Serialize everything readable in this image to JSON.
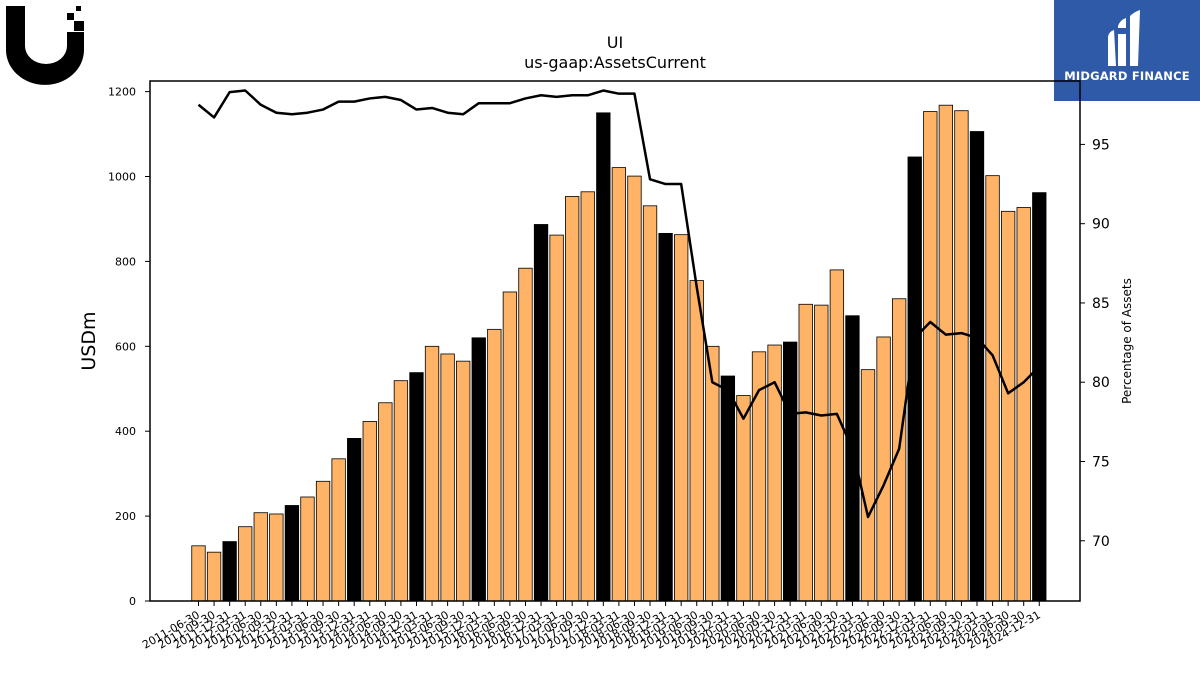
{
  "logo": {
    "icon": "ubiquiti-u-icon"
  },
  "brand": {
    "name": "MIDGARD FINANCE",
    "icon": "midgard-finance-logo-icon",
    "background": "#2f5aa8"
  },
  "chart_data": {
    "type": "bar",
    "title": "UI",
    "subtitle": "us-gaap:AssetsCurrent",
    "ylabel": "USDm",
    "y2label": "Percentage of Assets",
    "ylim": [
      0,
      1225
    ],
    "y2lim": [
      66.2,
      99.0
    ],
    "yticks": [
      0,
      200,
      400,
      600,
      800,
      1000,
      1200
    ],
    "y2ticks": [
      70,
      75,
      80,
      85,
      90,
      95
    ],
    "colors": {
      "bar_default": "#ffb366",
      "bar_highlight": "#000000",
      "line": "#000000"
    },
    "categories": [
      "2011-06-30",
      "2011-09-30",
      "2011-12-31",
      "2012-03-31",
      "2012-06-30",
      "2012-09-30",
      "2012-12-31",
      "2013-03-31",
      "2013-06-30",
      "2013-09-30",
      "2013-12-31",
      "2014-03-31",
      "2014-06-30",
      "2014-09-30",
      "2014-12-31",
      "2015-03-31",
      "2015-06-30",
      "2015-09-30",
      "2015-12-31",
      "2016-03-31",
      "2016-06-30",
      "2016-09-30",
      "2016-12-31",
      "2017-03-31",
      "2017-06-30",
      "2017-09-30",
      "2017-12-31",
      "2018-03-31",
      "2018-06-30",
      "2018-09-30",
      "2018-12-31",
      "2019-03-31",
      "2019-06-30",
      "2019-09-30",
      "2019-12-31",
      "2020-03-31",
      "2020-06-30",
      "2020-09-30",
      "2020-12-31",
      "2021-03-31",
      "2021-06-30",
      "2021-09-30",
      "2021-12-31",
      "2022-03-31",
      "2022-06-30",
      "2022-09-30",
      "2022-12-31",
      "2023-03-31",
      "2023-06-30",
      "2023-09-30",
      "2023-12-31",
      "2024-03-31",
      "2024-06-30",
      "2024-09-30",
      "2024-12-31"
    ],
    "series": [
      {
        "kind": "bar",
        "values": [
          130,
          115,
          140,
          175,
          208,
          205,
          225,
          245,
          282,
          335,
          383,
          423,
          467,
          519,
          538,
          600,
          582,
          565,
          620,
          640,
          728,
          784,
          887,
          862,
          953,
          964,
          1150,
          1021,
          1001,
          931,
          866,
          863,
          755,
          600,
          530,
          484,
          587,
          603,
          610,
          699,
          697,
          780,
          672,
          545,
          622,
          712,
          1046,
          1153,
          1168,
          1155,
          1106,
          1002,
          918,
          927,
          962
        ],
        "highlight": [
          false,
          false,
          true,
          false,
          false,
          false,
          true,
          false,
          false,
          false,
          true,
          false,
          false,
          false,
          true,
          false,
          false,
          false,
          true,
          false,
          false,
          false,
          true,
          false,
          false,
          false,
          true,
          false,
          false,
          false,
          true,
          false,
          false,
          false,
          true,
          false,
          false,
          false,
          true,
          false,
          false,
          false,
          true,
          false,
          false,
          false,
          true,
          false,
          false,
          false,
          true,
          false,
          false,
          false,
          true
        ]
      },
      {
        "kind": "line",
        "axis": "right",
        "values": [
          97.5,
          96.7,
          98.3,
          98.4,
          97.5,
          97.0,
          96.9,
          97.0,
          97.2,
          97.7,
          97.7,
          97.9,
          98.0,
          97.8,
          97.2,
          97.3,
          97.0,
          96.9,
          97.6,
          97.6,
          97.6,
          97.9,
          98.1,
          98.0,
          98.1,
          98.1,
          98.4,
          98.2,
          98.2,
          92.8,
          92.5,
          92.5,
          86.0,
          80.0,
          79.5,
          77.7,
          79.5,
          80.0,
          78.0,
          78.1,
          77.9,
          78.0,
          75.8,
          71.5,
          73.5,
          75.8,
          82.8,
          83.8,
          83.0,
          83.1,
          82.8,
          81.7,
          79.3,
          80.0,
          81.0
        ]
      }
    ]
  }
}
